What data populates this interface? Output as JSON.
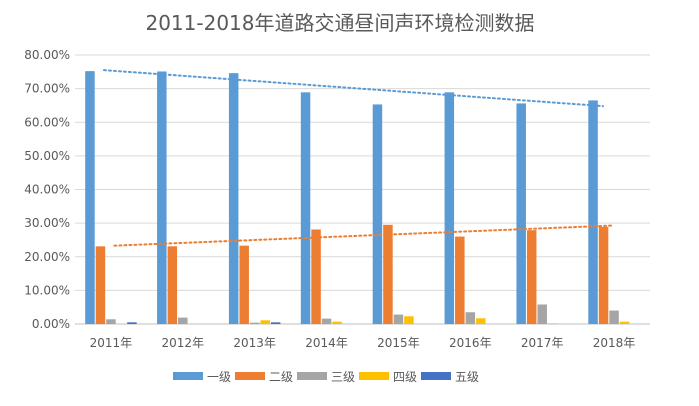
{
  "chart_data": {
    "type": "bar",
    "title": "2011-2018年道路交通昼间声环境检测数据",
    "xlabel": "",
    "ylabel": "",
    "categories": [
      "2011年",
      "2012年",
      "2013年",
      "2014年",
      "2015年",
      "2016年",
      "2017年",
      "2018年"
    ],
    "ylim": [
      0,
      80
    ],
    "yticks": [
      0,
      10,
      20,
      30,
      40,
      50,
      60,
      70,
      80
    ],
    "ytick_labels": [
      "0.00%",
      "10.00%",
      "20.00%",
      "30.00%",
      "40.00%",
      "50.00%",
      "60.00%",
      "70.00%",
      "80.00%"
    ],
    "grid": true,
    "legend_position": "bottom",
    "series": [
      {
        "name": "一级",
        "color": "#5b9bd5",
        "values": [
          75.2,
          75.1,
          74.6,
          68.9,
          65.3,
          68.9,
          65.6,
          66.5
        ]
      },
      {
        "name": "二级",
        "color": "#ed7d31",
        "values": [
          23.1,
          23.1,
          23.3,
          28.1,
          29.5,
          26.0,
          27.9,
          28.9
        ]
      },
      {
        "name": "三级",
        "color": "#a5a5a5",
        "values": [
          1.4,
          1.9,
          0.4,
          1.6,
          2.8,
          3.5,
          5.8,
          4.0
        ]
      },
      {
        "name": "四级",
        "color": "#ffc000",
        "values": [
          0.1,
          0.1,
          1.1,
          0.7,
          2.3,
          1.7,
          0.2,
          0.7
        ]
      },
      {
        "name": "五级",
        "color": "#4472c4",
        "values": [
          0.5,
          0.0,
          0.5,
          0.0,
          0.0,
          0.0,
          0.0,
          0.0
        ]
      }
    ],
    "trendlines": [
      {
        "series": "一级",
        "color": "#5b9bd5",
        "start": 75.5,
        "end": 64.8
      },
      {
        "series": "二级",
        "color": "#ed7d31",
        "start": 23.3,
        "end": 29.3
      }
    ]
  }
}
